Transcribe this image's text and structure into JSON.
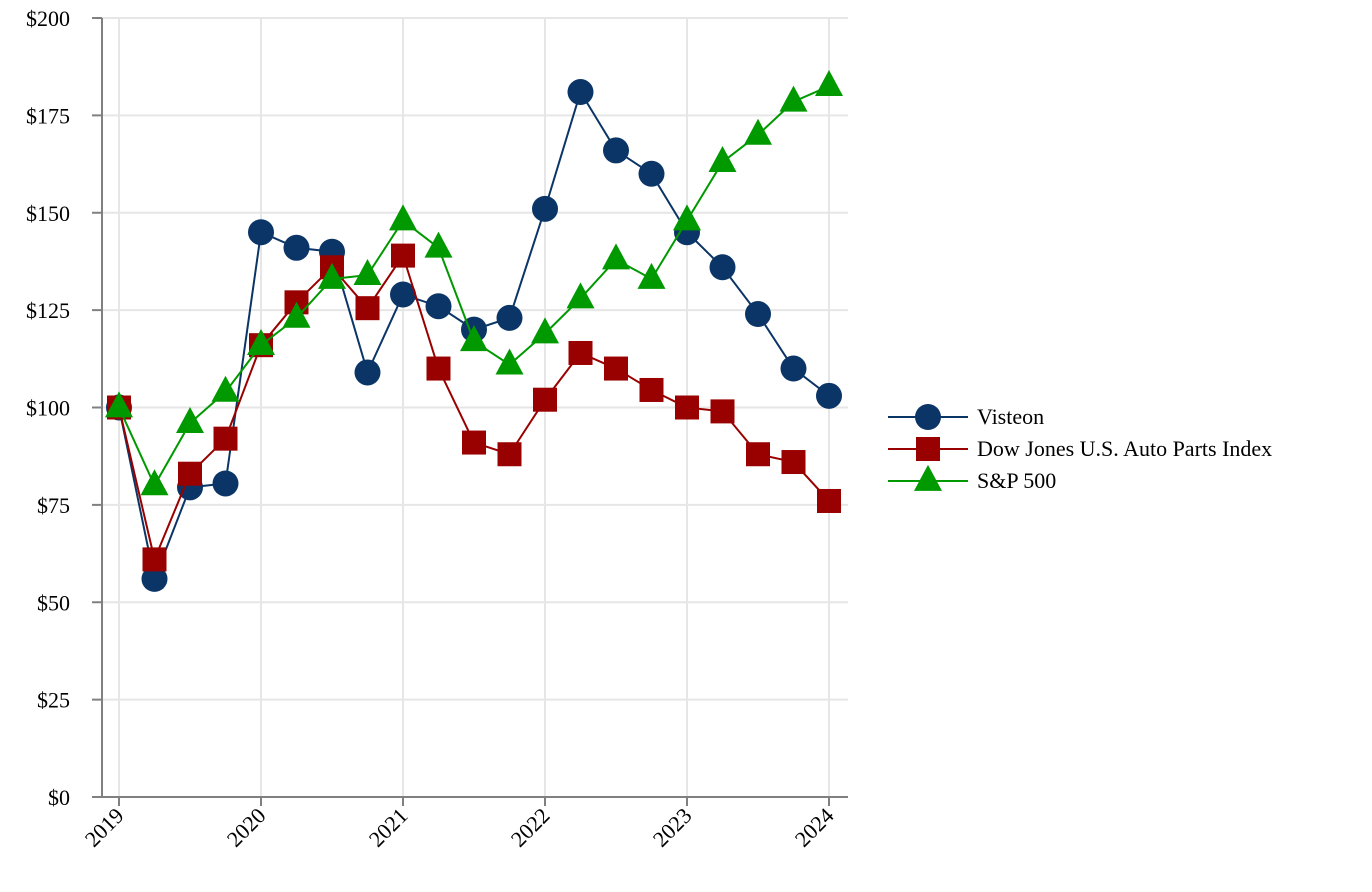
{
  "chart_data": {
    "type": "line",
    "title": "",
    "xlabel": "",
    "ylabel": "",
    "x": [
      2019,
      2019.25,
      2019.5,
      2019.75,
      2020,
      2020.25,
      2020.5,
      2020.75,
      2021,
      2021.25,
      2021.5,
      2021.75,
      2022,
      2022.25,
      2022.5,
      2022.75,
      2023,
      2023.25,
      2023.5,
      2023.75,
      2024
    ],
    "xlim": [
      2019,
      2024
    ],
    "ylim": [
      0,
      200
    ],
    "xticks": [
      2019,
      2020,
      2021,
      2022,
      2023,
      2024
    ],
    "xtick_labels": [
      "2019",
      "2020",
      "2021",
      "2022",
      "2023",
      "2024"
    ],
    "yticks": [
      0,
      25,
      50,
      75,
      100,
      125,
      150,
      175,
      200
    ],
    "ytick_labels": [
      "$0",
      "$25",
      "$50",
      "$75",
      "$100",
      "$125",
      "$150",
      "$175",
      "$200"
    ],
    "grid": true,
    "legend_position": "right",
    "series": [
      {
        "name": "Visteon",
        "color": "#0b3566",
        "marker": "circle",
        "values": [
          100,
          56,
          79.5,
          80.5,
          145,
          141,
          140,
          109,
          129,
          126,
          120,
          123,
          151,
          181,
          166,
          160,
          145,
          136,
          124,
          110,
          103
        ]
      },
      {
        "name": "Dow Jones U.S. Auto Parts Index",
        "color": "#990000",
        "marker": "square",
        "values": [
          100,
          61,
          83,
          92,
          116,
          127,
          136,
          125.5,
          139,
          110,
          91,
          88,
          102,
          114,
          110,
          104.5,
          100,
          99,
          88,
          86,
          76
        ]
      },
      {
        "name": "S&P 500",
        "color": "#009900",
        "marker": "triangle",
        "values": [
          100,
          80,
          96,
          104,
          116,
          123,
          133,
          134,
          148,
          141,
          117,
          111,
          119,
          128,
          138,
          133,
          148,
          163,
          170,
          178.5,
          182.5
        ]
      }
    ]
  }
}
